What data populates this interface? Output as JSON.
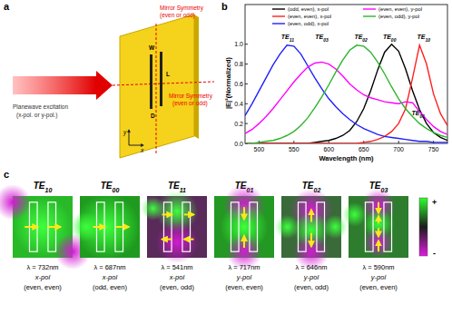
{
  "panel_a": {
    "label": "a",
    "beam_text": [
      "Planewave excitation",
      "(x-pol. or y-pol.)"
    ],
    "symmetry_v": [
      "Mirror Symmetry",
      "(even or odd)"
    ],
    "symmetry_h": [
      "Mirror Symmetry",
      "(even or odd)"
    ],
    "dims": [
      "W",
      "L",
      "D"
    ],
    "axes": [
      "y",
      "x"
    ]
  },
  "panel_b": {
    "label": "b"
  },
  "chart_data": {
    "type": "line",
    "x_label": "Wavelength (nm)",
    "y_label": "|E|²(Normalized)",
    "x": [
      480,
      490,
      500,
      510,
      520,
      530,
      540,
      550,
      560,
      570,
      580,
      590,
      600,
      610,
      620,
      630,
      640,
      650,
      660,
      670,
      680,
      690,
      700,
      710,
      720,
      730,
      740,
      750,
      760,
      770
    ],
    "xlim": [
      480,
      770
    ],
    "xticks": [
      500,
      550,
      600,
      650,
      700,
      750
    ],
    "ylim": [
      0,
      1.4
    ],
    "yticks": [
      {
        "value": 0,
        "label": "0.0"
      },
      {
        "value": 0.2,
        "label": "0.2"
      },
      {
        "value": 0.4,
        "label": "0.4"
      },
      {
        "value": 0.6,
        "label": "0.6"
      },
      {
        "value": 0.8,
        "label": "0.8"
      },
      {
        "value": 1.0,
        "label": "1.0"
      }
    ],
    "legend": "top",
    "grid": false,
    "series": [
      {
        "name": "(odd, even), x-pol",
        "color": "#000000",
        "values": [
          0,
          0,
          0,
          0,
          0,
          0,
          0,
          0,
          0,
          0,
          0.01,
          0.02,
          0.03,
          0.05,
          0.08,
          0.13,
          0.22,
          0.35,
          0.53,
          0.74,
          0.92,
          1.0,
          0.93,
          0.75,
          0.53,
          0.34,
          0.2,
          0.11,
          0.06,
          0.03
        ]
      },
      {
        "name": "(even, even), x-pol",
        "color": "#ff2020",
        "values": [
          0,
          0,
          0,
          0,
          0,
          0,
          0,
          0,
          0,
          0,
          0,
          0,
          0,
          0,
          0,
          0,
          0,
          0.01,
          0.02,
          0.04,
          0.07,
          0.12,
          0.2,
          0.35,
          0.66,
          0.99,
          0.8,
          0.5,
          0.3,
          0.18
        ]
      },
      {
        "name": "(even, odd), x-pol",
        "color": "#2020ff",
        "values": [
          0.28,
          0.4,
          0.53,
          0.66,
          0.79,
          0.9,
          0.99,
          0.98,
          0.9,
          0.78,
          0.66,
          0.55,
          0.45,
          0.37,
          0.3,
          0.24,
          0.19,
          0.15,
          0.12,
          0.09,
          0.07,
          0.06,
          0.05,
          0.04,
          0.03,
          0.02,
          0.02,
          0.01,
          0.01,
          0.01
        ]
      },
      {
        "name": "(even, even), y-pol",
        "color": "#ff00ff",
        "values": [
          0.1,
          0.14,
          0.2,
          0.27,
          0.35,
          0.44,
          0.53,
          0.62,
          0.7,
          0.77,
          0.81,
          0.82,
          0.8,
          0.75,
          0.68,
          0.6,
          0.54,
          0.49,
          0.46,
          0.44,
          0.42,
          0.41,
          0.4,
          0.42,
          0.41,
          0.32,
          0.24,
          0.17,
          0.12,
          0.09
        ]
      },
      {
        "name": "(even, odd), y-pol",
        "color": "#2db52d",
        "values": [
          0,
          0,
          0.01,
          0.02,
          0.03,
          0.05,
          0.08,
          0.12,
          0.18,
          0.26,
          0.36,
          0.47,
          0.59,
          0.72,
          0.84,
          0.94,
          0.99,
          0.98,
          0.92,
          0.82,
          0.7,
          0.57,
          0.45,
          0.35,
          0.27,
          0.2,
          0.15,
          0.11,
          0.08,
          0.06
        ]
      }
    ],
    "annotations": [
      {
        "text": "TE",
        "sub": "11",
        "x": 541,
        "y": 1.05
      },
      {
        "text": "TE",
        "sub": "03",
        "x": 590,
        "y": 1.05
      },
      {
        "text": "TE",
        "sub": "02",
        "x": 646,
        "y": 1.05
      },
      {
        "text": "TE",
        "sub": "00",
        "x": 687,
        "y": 1.05
      },
      {
        "text": "TE",
        "sub": "10",
        "x": 736,
        "y": 1.05
      },
      {
        "text": "TE",
        "sub": "01",
        "x": 728,
        "y": 0.28
      }
    ]
  },
  "panel_c": {
    "label": "c",
    "colorbar": [
      "+",
      "-"
    ],
    "modes": [
      {
        "name": "TE",
        "sub": "10",
        "wavelength": "λ = 732nm",
        "pol": "x-pol",
        "symmetry": "(even, even)"
      },
      {
        "name": "TE",
        "sub": "00",
        "wavelength": "λ = 687nm",
        "pol": "x-pol",
        "symmetry": "(odd, even)"
      },
      {
        "name": "TE",
        "sub": "11",
        "wavelength": "λ = 541nm",
        "pol": "x-pol",
        "symmetry": "(even, odd)"
      },
      {
        "name": "TE",
        "sub": "01",
        "wavelength": "λ = 717nm",
        "pol": "y-pol",
        "symmetry": "(even, even)"
      },
      {
        "name": "TE",
        "sub": "02",
        "wavelength": "λ = 646nm",
        "pol": "y-pol",
        "symmetry": "(even, odd)"
      },
      {
        "name": "TE",
        "sub": "03",
        "wavelength": "λ = 590nm",
        "pol": "y-pol",
        "symmetry": "(even, even)"
      }
    ]
  }
}
